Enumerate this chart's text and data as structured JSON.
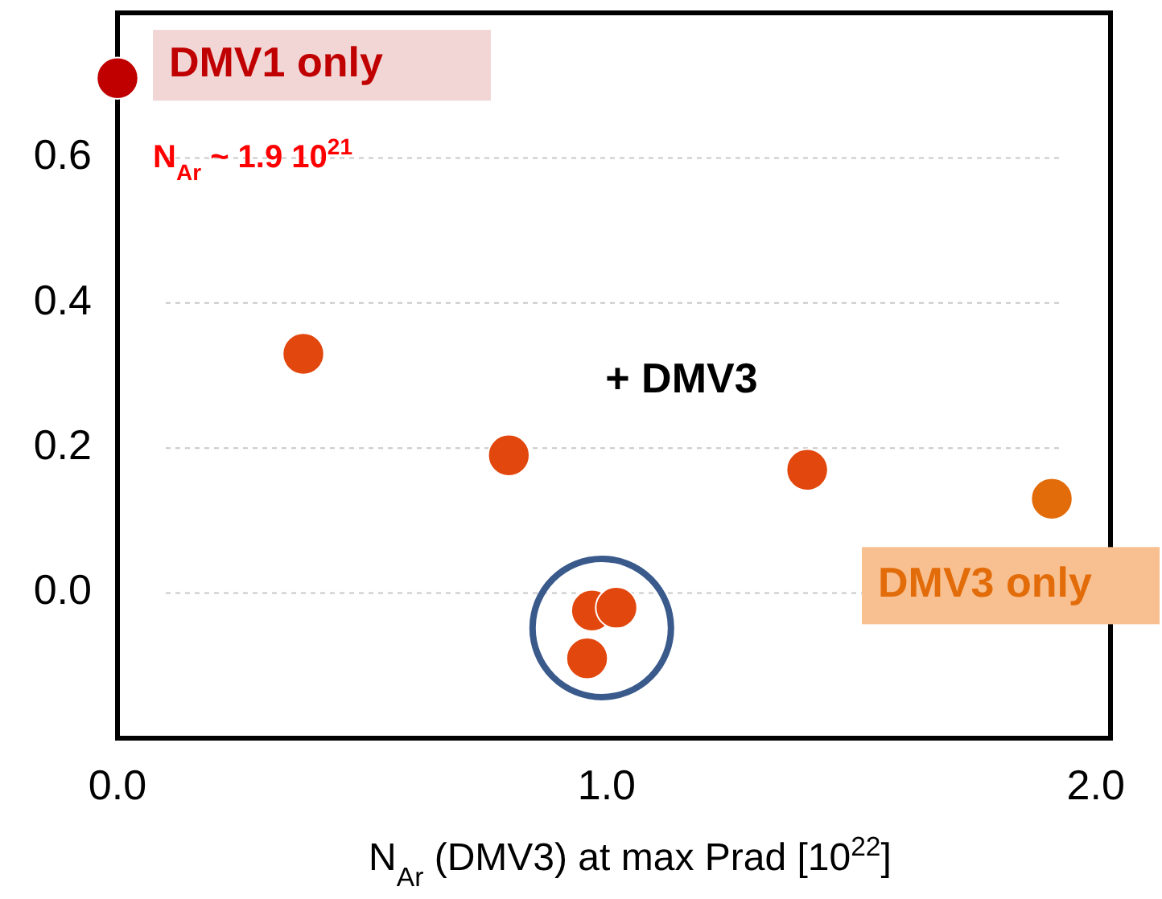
{
  "chart_data": {
    "type": "scatter",
    "xlabel": "N$_{Ar}$ (DMV3) at max Prad [10$^{22}$]",
    "xlim": [
      0,
      2.03
    ],
    "xticks": [
      {
        "value": 0,
        "label": "0.0"
      },
      {
        "value": 1,
        "label": "1.0"
      },
      {
        "value": 2,
        "label": "2.0"
      }
    ],
    "ylim": [
      -0.2,
      0.8
    ],
    "yticks": [
      {
        "value": 0,
        "label": "0.0"
      },
      0.2,
      0.4,
      0.6
    ],
    "grid": "y",
    "marker": "circle",
    "series": [
      {
        "name": "DMV1 only",
        "color": "#c00000",
        "x": [
          0
        ],
        "values": [
          0.71
        ]
      },
      {
        "name": "+ DMV3",
        "color": "#e2470e",
        "x": [
          0.38,
          0.8,
          1.41,
          0.97,
          1.02,
          0.96
        ],
        "values": [
          0.33,
          0.19,
          0.17,
          -0.024,
          -0.02,
          -0.09
        ]
      },
      {
        "name": "DMV3 only",
        "color": "#e36c0a",
        "x": [
          1.91
        ],
        "values": [
          0.13
        ]
      }
    ],
    "annotations": [
      "N$_{Ar}$ ~ 1.9 10$^{21}$"
    ]
  }
}
